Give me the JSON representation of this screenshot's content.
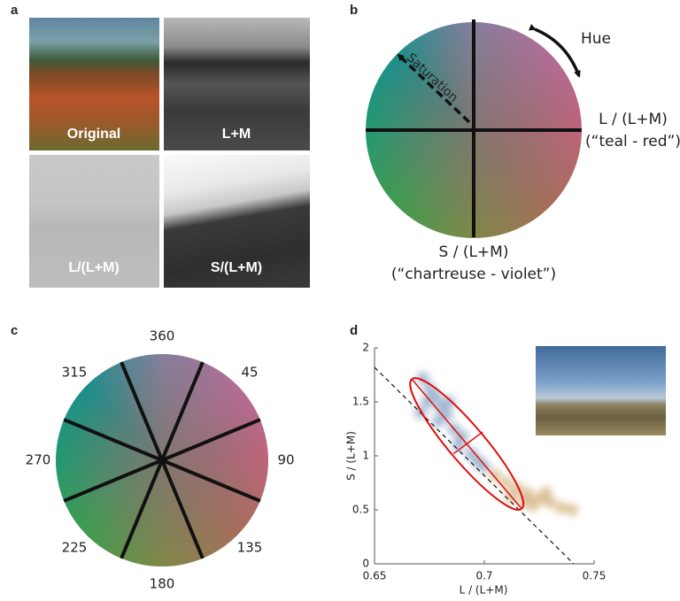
{
  "panel_a": {
    "label": "a",
    "images": [
      "Original",
      "L+M",
      "L/(L+M)",
      "S/(L+M)"
    ]
  },
  "panel_b": {
    "label": "b",
    "hue": "Hue",
    "saturation": "Saturation",
    "x_axis": "L / (L+M)",
    "x_axis_note": "(“teal - red”)",
    "y_axis": "S / (L+M)",
    "y_axis_note": "(“chartreuse - violet”)"
  },
  "panel_c": {
    "label": "c",
    "angles": [
      360,
      45,
      90,
      135,
      180,
      225,
      270,
      315
    ]
  },
  "panel_d": {
    "label": "d"
  },
  "chart_data": {
    "type": "scatter",
    "xlabel": "L / (L+M)",
    "ylabel": "S / (L+M)",
    "xlim": [
      0.65,
      0.75
    ],
    "ylim": [
      0,
      2
    ],
    "xticks": [
      0.65,
      0.7,
      0.75
    ],
    "yticks": [
      0,
      0.5,
      1,
      1.5,
      2
    ],
    "series": [
      {
        "color": "#6d8fb8",
        "x": [
          0.672,
          0.675,
          0.678,
          0.674,
          0.68,
          0.683,
          0.679,
          0.686,
          0.69,
          0.688,
          0.694,
          0.697,
          0.7,
          0.684,
          0.671
        ],
        "y": [
          1.72,
          1.62,
          1.55,
          1.5,
          1.45,
          1.38,
          1.32,
          1.25,
          1.18,
          1.1,
          1.02,
          0.95,
          0.9,
          1.5,
          1.4
        ]
      },
      {
        "color": "#c9a262",
        "x": [
          0.705,
          0.71,
          0.715,
          0.72,
          0.725,
          0.73,
          0.735,
          0.718,
          0.728,
          0.74,
          0.712,
          0.722
        ],
        "y": [
          0.82,
          0.75,
          0.7,
          0.65,
          0.6,
          0.57,
          0.52,
          0.58,
          0.66,
          0.5,
          0.62,
          0.54
        ]
      }
    ],
    "fit_line": {
      "x": [
        0.65,
        0.7407
      ],
      "y": [
        1.82,
        0
      ]
    },
    "ellipse": {
      "color": "#e01010",
      "major_x": [
        0.667,
        0.717
      ],
      "major_y": [
        1.71,
        0.51
      ],
      "minor_x": [
        0.686,
        0.6992
      ],
      "minor_y": [
        1.02,
        1.22
      ]
    }
  }
}
